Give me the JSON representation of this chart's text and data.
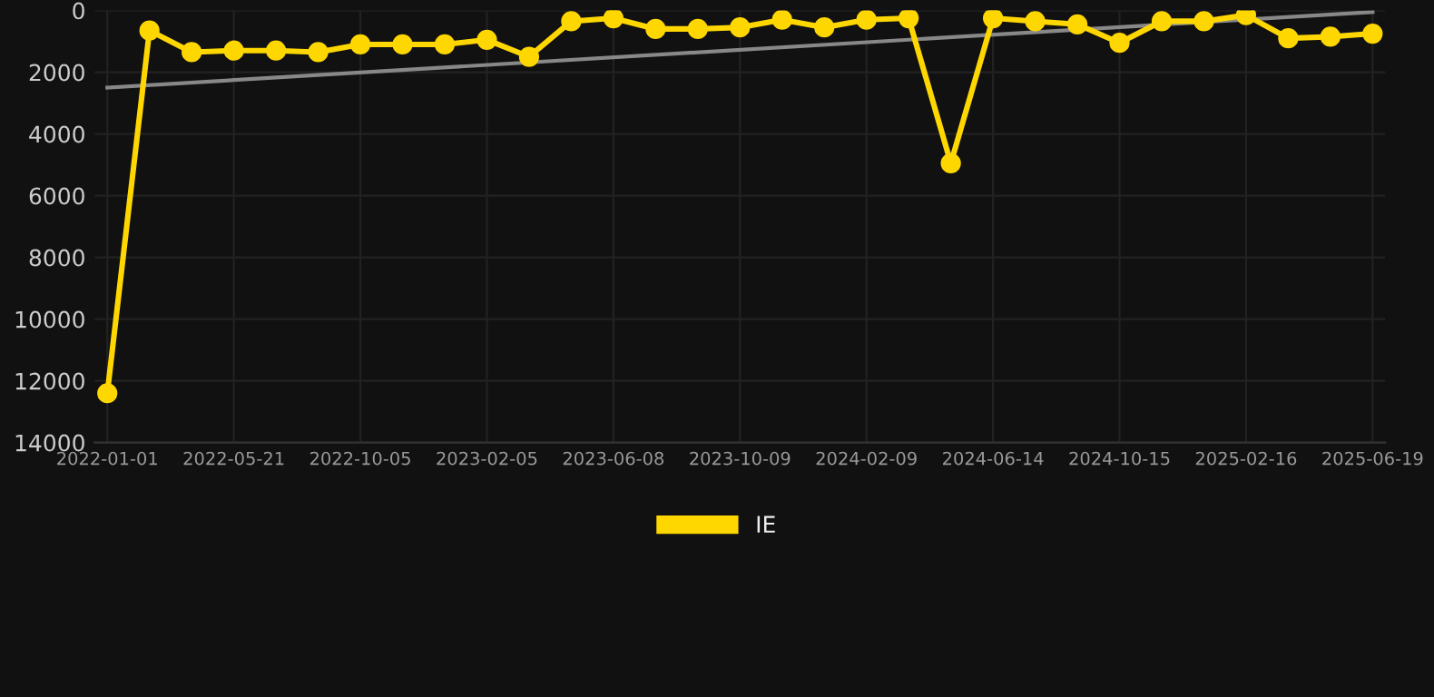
{
  "chart_data": {
    "type": "line",
    "categories": [
      "2022-01-01",
      null,
      null,
      "2022-05-21",
      null,
      null,
      "2022-10-05",
      null,
      null,
      "2023-02-05",
      null,
      null,
      "2023-06-08",
      null,
      null,
      "2023-10-09",
      null,
      null,
      "2024-02-09",
      null,
      null,
      "2024-06-14",
      null,
      null,
      "2024-10-15",
      null,
      null,
      "2025-02-16",
      null,
      null,
      "2025-06-19"
    ],
    "series": [
      {
        "name": "IE",
        "color": "#ffd700",
        "marker": "circle",
        "values": [
          12400,
          650,
          1350,
          1300,
          1300,
          1350,
          1100,
          1100,
          1100,
          950,
          1500,
          350,
          250,
          600,
          600,
          550,
          300,
          550,
          300,
          250,
          4950,
          250,
          350,
          450,
          1050,
          350,
          350,
          150,
          900,
          850,
          750
        ]
      },
      {
        "color": "#888888",
        "marker": "none",
        "values": [
          2500,
          null,
          null,
          null,
          null,
          null,
          null,
          null,
          null,
          null,
          null,
          null,
          null,
          null,
          null,
          null,
          null,
          null,
          null,
          null,
          null,
          null,
          null,
          null,
          null,
          null,
          null,
          null,
          null,
          null,
          50
        ]
      }
    ],
    "ylim": [
      14000,
      0
    ],
    "yticks": [
      0,
      2000,
      4000,
      6000,
      8000,
      10000,
      12000,
      14000
    ],
    "grid": true,
    "legend": "bottom"
  }
}
